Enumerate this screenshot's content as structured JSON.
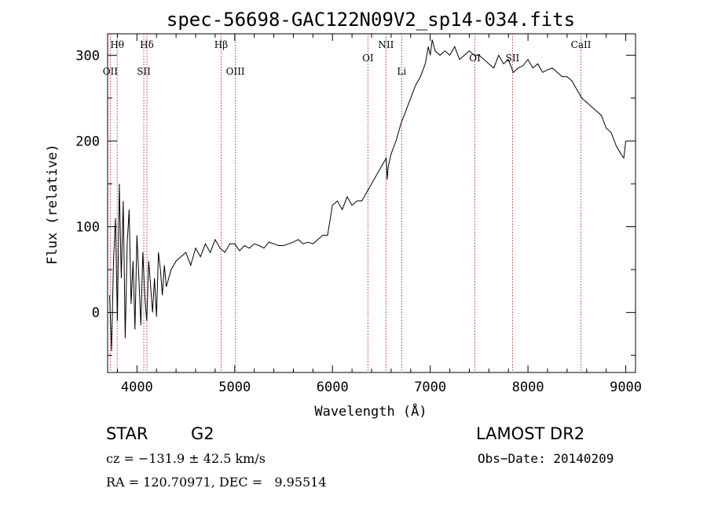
{
  "chart_data": {
    "type": "line",
    "title": "spec-56698-GAC122N09V2_sp14-034.fits",
    "xlabel": "Wavelength (Å)",
    "ylabel": "Flux (relative)",
    "xlim": [
      3700,
      9100
    ],
    "ylim": [
      -70,
      325
    ],
    "xticks": [
      {
        "value": 4000,
        "label": "4000"
      },
      {
        "value": 5000,
        "label": "5000"
      },
      {
        "value": 6000,
        "label": "6000"
      },
      {
        "value": 7000,
        "label": "7000"
      },
      {
        "value": 8000,
        "label": "8000"
      },
      {
        "value": 9000,
        "label": "9000"
      }
    ],
    "yticks": [
      {
        "value": 0,
        "label": "0"
      },
      {
        "value": 100,
        "label": "100"
      },
      {
        "value": 200,
        "label": "200"
      },
      {
        "value": 300,
        "label": "300"
      }
    ],
    "line_color": "#000000",
    "marker_color": "#c0392b",
    "series": [
      {
        "x": [
          3720,
          3740,
          3760,
          3780,
          3800,
          3820,
          3840,
          3860,
          3880,
          3900,
          3920,
          3940,
          3960,
          3980,
          4000,
          4020,
          4040,
          4060,
          4080,
          4100,
          4120,
          4140,
          4160,
          4180,
          4200,
          4220,
          4240,
          4260,
          4280,
          4300,
          4350,
          4400,
          4450,
          4500,
          4550,
          4600,
          4650,
          4700,
          4750,
          4800,
          4850,
          4900,
          4950,
          5000,
          5050,
          5100,
          5150,
          5200,
          5250,
          5300,
          5350,
          5400,
          5450,
          5500,
          5550,
          5600,
          5650,
          5700,
          5750,
          5800,
          5850,
          5900,
          5950,
          6000,
          6050,
          6100,
          6150,
          6200,
          6250,
          6300,
          6350,
          6400,
          6450,
          6500,
          6550,
          6560,
          6570,
          6600,
          6650,
          6700,
          6750,
          6800,
          6850,
          6900,
          6950,
          6980,
          7000,
          7020,
          7050,
          7100,
          7150,
          7200,
          7250,
          7300,
          7350,
          7400,
          7450,
          7500,
          7550,
          7600,
          7650,
          7700,
          7750,
          7800,
          7850,
          7900,
          7950,
          8000,
          8050,
          8100,
          8150,
          8200,
          8250,
          8300,
          8350,
          8400,
          8450,
          8500,
          8550,
          8600,
          8650,
          8700,
          8750,
          8800,
          8850,
          8900,
          8950,
          8980,
          9000
        ],
        "y": [
          20,
          -45,
          60,
          110,
          -10,
          150,
          40,
          130,
          -30,
          80,
          120,
          10,
          60,
          -20,
          90,
          40,
          -15,
          70,
          20,
          -10,
          60,
          30,
          0,
          40,
          -5,
          70,
          50,
          20,
          55,
          30,
          50,
          60,
          65,
          70,
          55,
          75,
          65,
          80,
          70,
          85,
          75,
          70,
          80,
          80,
          72,
          78,
          75,
          80,
          78,
          75,
          82,
          80,
          78,
          78,
          80,
          82,
          85,
          80,
          82,
          80,
          85,
          90,
          90,
          125,
          130,
          120,
          135,
          125,
          130,
          130,
          140,
          150,
          160,
          170,
          180,
          155,
          170,
          185,
          200,
          220,
          235,
          250,
          265,
          275,
          290,
          310,
          300,
          318,
          305,
          300,
          305,
          300,
          310,
          295,
          300,
          305,
          300,
          300,
          295,
          290,
          285,
          300,
          290,
          295,
          280,
          285,
          288,
          295,
          285,
          290,
          280,
          283,
          285,
          280,
          275,
          275,
          270,
          260,
          250,
          245,
          240,
          235,
          230,
          215,
          210,
          195,
          185,
          180,
          200
        ]
      }
    ],
    "spectral_lines": [
      {
        "label": "Hθ",
        "x": 3798,
        "pos": "upper"
      },
      {
        "label": "OII",
        "x": 3727,
        "pos": "lower"
      },
      {
        "label": "Hδ",
        "x": 4102,
        "pos": "upper"
      },
      {
        "label": "SII",
        "x": 4070,
        "pos": "lower"
      },
      {
        "label": "Hβ",
        "x": 4861,
        "pos": "upper"
      },
      {
        "label": "OIII",
        "x": 5007,
        "pos": "lower"
      },
      {
        "label": "OI",
        "x": 6363,
        "pos": "mid"
      },
      {
        "label": "NII",
        "x": 6548,
        "pos": "upper"
      },
      {
        "label": "Li",
        "x": 6708,
        "pos": "lower"
      },
      {
        "label": "OI",
        "x": 7457,
        "pos": "mid"
      },
      {
        "label": "SII",
        "x": 7842,
        "pos": "mid"
      },
      {
        "label": "CaII",
        "x": 8542,
        "pos": "upper"
      }
    ]
  },
  "info": {
    "object_type": "STAR",
    "subclass": "G2",
    "survey": "LAMOST DR2",
    "cz": "cz = −131.9 ± 42.5 km/s",
    "obs_date": "Obs−Date: 20140209",
    "coords": "RA = 120.70971, DEC =   9.95514"
  }
}
